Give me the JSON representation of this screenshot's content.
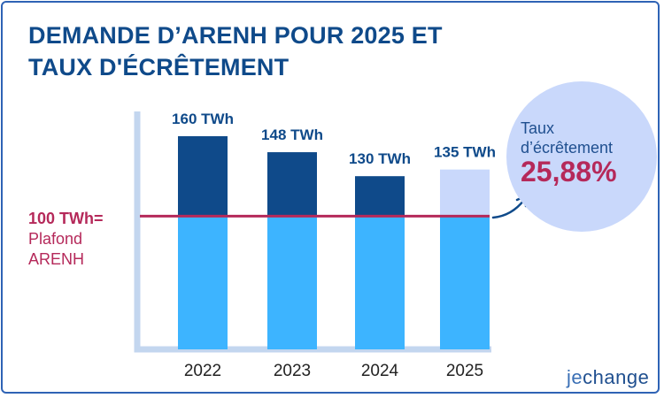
{
  "title": {
    "line1": "DEMANDE D’ARENH POUR 2025 ET",
    "line2": "TAUX D'ÉCRÊTEMENT"
  },
  "plafond": {
    "value": "100 TWh=",
    "line2": "Plafond",
    "line3": "ARENH"
  },
  "bubble": {
    "label_line1": "Taux",
    "label_line2": "d’écrêtement",
    "value": "25,88%"
  },
  "logo": {
    "prefix": "je",
    "suffix": "change"
  },
  "chart_data": {
    "type": "bar",
    "categories": [
      "2022",
      "2023",
      "2024",
      "2025"
    ],
    "values": [
      160,
      148,
      130,
      135
    ],
    "data_labels": [
      "160 TWh",
      "148 TWh",
      "130 TWh",
      "135 TWh"
    ],
    "reference_line": {
      "value": 100,
      "label": "100 TWh= Plafond ARENH"
    },
    "unit": "TWh",
    "title": "DEMANDE D’ARENH POUR 2025 ET TAUX D'ÉCRÊTEMENT",
    "xlabel": "",
    "ylabel": "",
    "ylim": [
      0,
      160
    ],
    "grid": false,
    "legend": "none",
    "colors": {
      "below_cap": "#3db4ff",
      "above_cap": "#0f4a8a",
      "above_cap_2025": "#c9d8fb",
      "cap_line": "#b5295a",
      "axis": "#c3d6ef"
    }
  }
}
